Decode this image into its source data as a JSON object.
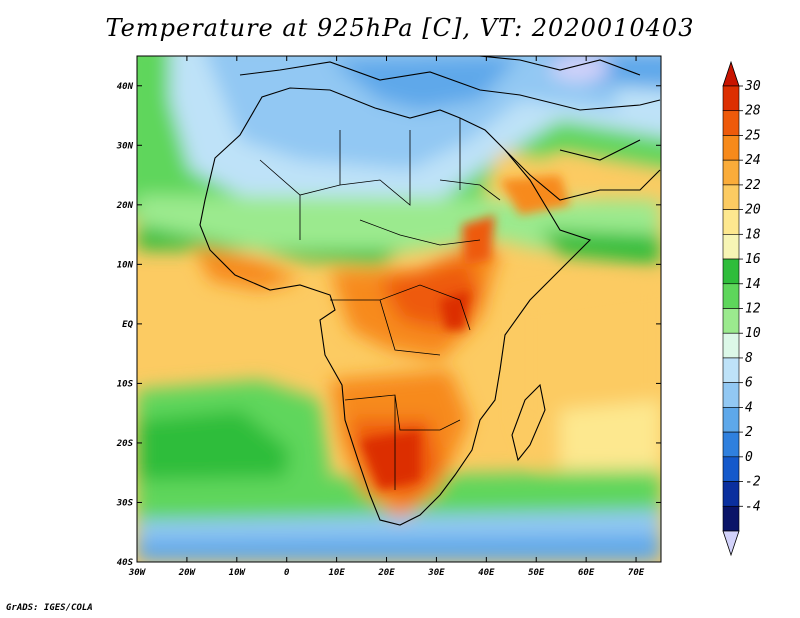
{
  "title": "Temperature at 925hPa [C], VT: 2020010403",
  "footer": "GrADS: IGES/COLA",
  "lon_labels": [
    "30W",
    "20W",
    "10W",
    "0",
    "10E",
    "20E",
    "30E",
    "40E",
    "50E",
    "60E",
    "70E"
  ],
  "lat_labels": [
    "40N",
    "30N",
    "20N",
    "10N",
    "EQ",
    "10S",
    "20S",
    "30S",
    "40S"
  ],
  "colorbar_labels": [
    "30",
    "28",
    "25",
    "24",
    "22",
    "20",
    "18",
    "16",
    "14",
    "12",
    "10",
    "8",
    "6",
    "4",
    "2",
    "0",
    "-2",
    "-4"
  ],
  "colorbar_colors": [
    "#dc2f02",
    "#ee5a0a",
    "#f78a1b",
    "#faac3a",
    "#fccb62",
    "#fde88f",
    "#f7f5b5",
    "#2fbd3b",
    "#5ed65b",
    "#9bea8e",
    "#dcf8e8",
    "#bee2f8",
    "#92c8f3",
    "#5ea8ea",
    "#2f80de",
    "#1459cb",
    "#0a2f9e",
    "#0a1468"
  ],
  "colorbar_ends": {
    "top": "#c81400",
    "bottom": "#d2d2fa"
  },
  "chart_data": {
    "type": "heatmap",
    "title": "Temperature at 925hPa [C], VT: 2020010403",
    "xlim": [
      -30,
      75
    ],
    "ylim": [
      -40,
      45
    ],
    "x_ticks": [
      "30W",
      "20W",
      "10W",
      "0",
      "10E",
      "20E",
      "30E",
      "40E",
      "50E",
      "60E",
      "70E"
    ],
    "y_ticks": [
      "40N",
      "30N",
      "20N",
      "10N",
      "EQ",
      "10S",
      "20S",
      "30S",
      "40S"
    ],
    "color_levels": [
      -4,
      -2,
      0,
      2,
      4,
      6,
      8,
      10,
      12,
      14,
      16,
      18,
      20,
      22,
      24,
      25,
      28,
      30
    ],
    "grid": false
  }
}
